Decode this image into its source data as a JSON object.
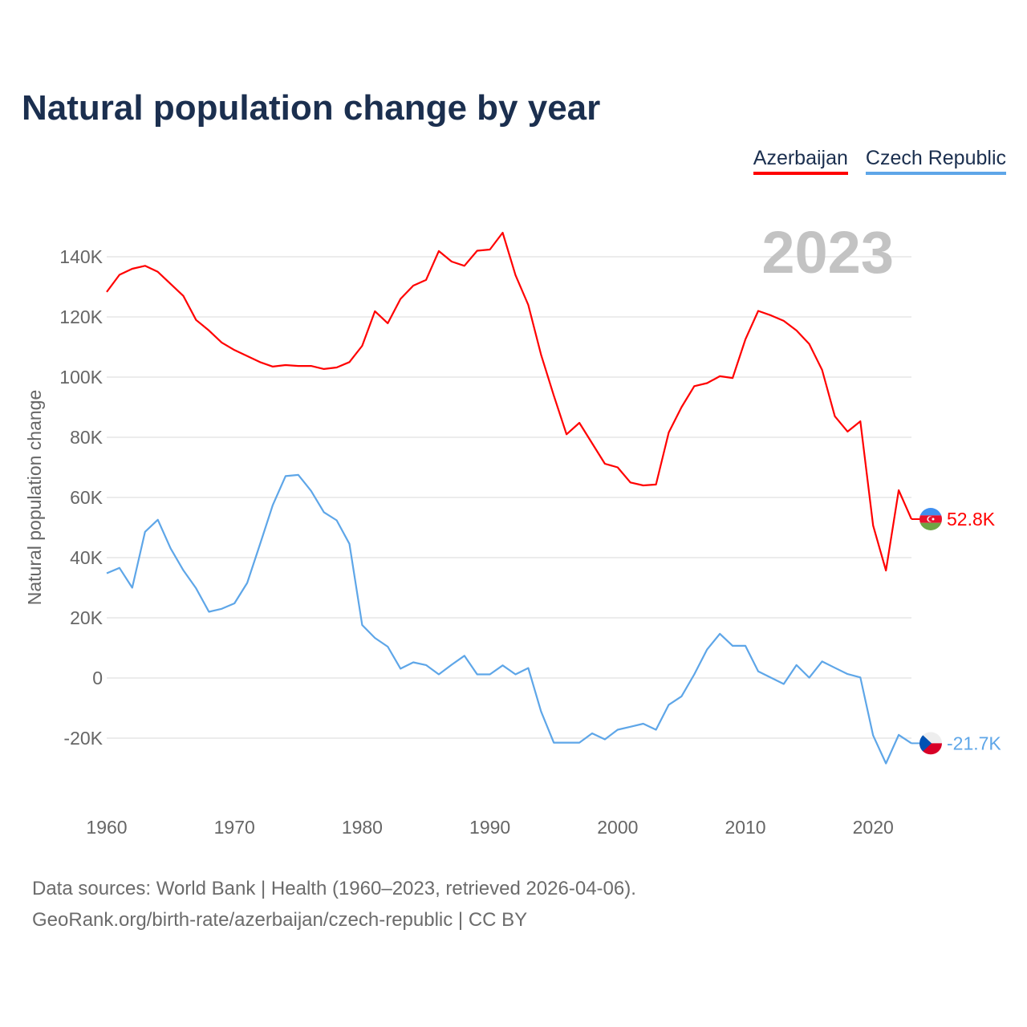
{
  "title": "Natural population change by year",
  "legend": [
    {
      "label": "Azerbaijan",
      "color": "#ff0000"
    },
    {
      "label": "Czech Republic",
      "color": "#5ea6e8"
    }
  ],
  "year_watermark": "2023",
  "footer": {
    "line1": "Data sources: World Bank | Health (1960–2023, retrieved 2026-04-06).",
    "line2": "GeoRank.org/birth-rate/azerbaijan/czech-republic | CC BY"
  },
  "chart_data": {
    "type": "line",
    "title": "Natural population change by year",
    "xlabel": "",
    "ylabel": "Natural population change",
    "xlim": [
      1960,
      2023
    ],
    "ylim": [
      -30000,
      150000
    ],
    "grid": true,
    "legend_position": "top-right",
    "x_ticks": [
      1960,
      1970,
      1980,
      1990,
      2000,
      2010,
      2020
    ],
    "x_tick_labels": [
      "1960",
      "1970",
      "1980",
      "1990",
      "2000",
      "2010",
      "2020"
    ],
    "y_ticks": [
      -20000,
      0,
      20000,
      40000,
      60000,
      80000,
      100000,
      120000,
      140000
    ],
    "y_tick_labels": [
      "-20K",
      "0",
      "20K",
      "40K",
      "60K",
      "80K",
      "100K",
      "120K",
      "140K"
    ],
    "x": [
      1960,
      1961,
      1962,
      1963,
      1964,
      1965,
      1966,
      1967,
      1968,
      1969,
      1970,
      1971,
      1972,
      1973,
      1974,
      1975,
      1976,
      1977,
      1978,
      1979,
      1980,
      1981,
      1982,
      1983,
      1984,
      1985,
      1986,
      1987,
      1988,
      1989,
      1990,
      1991,
      1992,
      1993,
      1994,
      1995,
      1996,
      1997,
      1998,
      1999,
      2000,
      2001,
      2002,
      2003,
      2004,
      2005,
      2006,
      2007,
      2008,
      2009,
      2010,
      2011,
      2012,
      2013,
      2014,
      2015,
      2016,
      2017,
      2018,
      2019,
      2020,
      2021,
      2022,
      2023
    ],
    "series": [
      {
        "name": "Azerbaijan",
        "color": "#ff0000",
        "end_label": "52.8K",
        "values": [
          128300,
          134000,
          136000,
          137000,
          135000,
          131000,
          127000,
          119000,
          115500,
          111500,
          109000,
          107000,
          105000,
          103500,
          104000,
          103700,
          103700,
          102700,
          103200,
          105000,
          110400,
          121900,
          117900,
          126000,
          130400,
          132300,
          141900,
          138400,
          137000,
          142000,
          142400,
          148000,
          133900,
          124000,
          107500,
          93900,
          81000,
          84800,
          78000,
          71200,
          70000,
          65000,
          64000,
          64300,
          81600,
          90000,
          97000,
          98000,
          100300,
          99700,
          112500,
          122000,
          120500,
          118700,
          115500,
          111000,
          102400,
          87000,
          81900,
          85300,
          50700,
          35700,
          62400,
          52800
        ]
      },
      {
        "name": "Czech Republic",
        "color": "#5ea6e8",
        "end_label": "-21.7K",
        "values": [
          34800,
          36600,
          30000,
          48600,
          52600,
          43100,
          35800,
          29800,
          22000,
          23000,
          24800,
          31600,
          44400,
          57500,
          67100,
          67500,
          62200,
          55100,
          52400,
          44600,
          17600,
          13300,
          10400,
          3100,
          5200,
          4300,
          1200,
          4400,
          7400,
          1200,
          1200,
          4200,
          1200,
          3300,
          -11100,
          -21500,
          -21500,
          -21500,
          -18400,
          -20400,
          -17200,
          -16200,
          -15200,
          -17200,
          -8900,
          -6100,
          1200,
          9500,
          14700,
          10700,
          10700,
          2200,
          100,
          -2000,
          4300,
          100,
          5500,
          3400,
          1300,
          200,
          -19100,
          -28400,
          -18900,
          -21700
        ]
      }
    ]
  }
}
